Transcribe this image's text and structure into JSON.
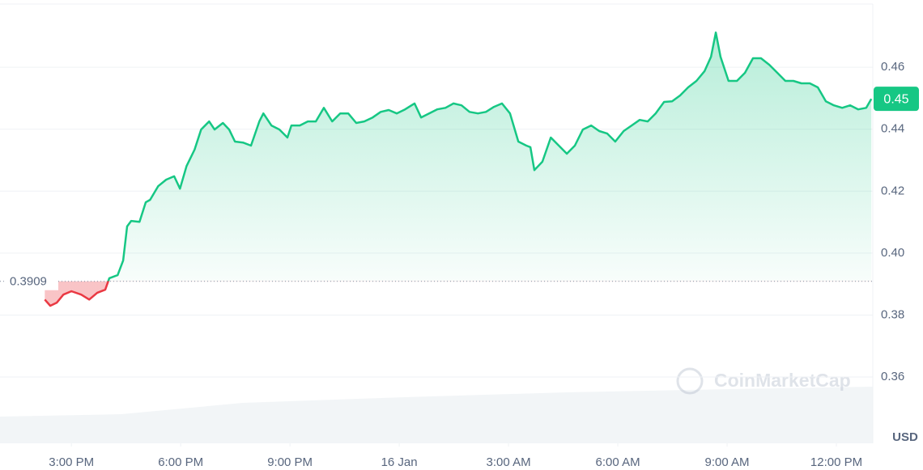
{
  "chart_data": {
    "type": "line",
    "x": [
      14.27,
      14.42,
      14.6,
      14.78,
      15,
      15.27,
      15.49,
      15.71,
      15.93,
      16.04,
      16.27,
      16.42,
      16.53,
      16.64,
      16.87,
      17.04,
      17.16,
      17.38,
      17.6,
      17.82,
      17.98,
      18.16,
      18.38,
      18.56,
      18.78,
      18.93,
      19.16,
      19.33,
      19.49,
      19.71,
      19.93,
      20.16,
      20.27,
      20.49,
      20.71,
      20.93,
      21.04,
      21.27,
      21.49,
      21.71,
      21.93,
      22.16,
      22.38,
      22.6,
      22.82,
      23.04,
      23.27,
      23.49,
      23.71,
      23.93,
      24.16,
      24.42,
      24.6,
      24.82,
      25.04,
      25.27,
      25.49,
      25.71,
      25.93,
      26.16,
      26.38,
      26.6,
      26.82,
      27.04,
      27.27,
      27.49,
      27.6,
      27.71,
      27.93,
      28.16,
      28.38,
      28.6,
      28.82,
      29.04,
      29.27,
      29.49,
      29.71,
      29.93,
      30.16,
      30.38,
      30.6,
      30.82,
      31.04,
      31.27,
      31.49,
      31.71,
      31.93,
      32.16,
      32.38,
      32.56,
      32.69,
      32.82,
      33.04,
      33.27,
      33.49,
      33.71,
      33.93,
      34.16,
      34.38,
      34.6,
      34.82,
      35.04,
      35.27,
      35.49,
      35.71,
      35.93,
      36.16,
      36.38,
      36.6,
      36.82,
      36.96
    ],
    "series": [
      {
        "color": "#16c784",
        "below_color": "#ea3943",
        "values": [
          0.385,
          0.383,
          0.384,
          0.3866,
          0.3877,
          0.3866,
          0.385,
          0.3872,
          0.3882,
          0.3919,
          0.3929,
          0.3976,
          0.4086,
          0.4104,
          0.4101,
          0.4164,
          0.4172,
          0.4216,
          0.4237,
          0.4248,
          0.4208,
          0.4281,
          0.4334,
          0.4399,
          0.4425,
          0.4399,
          0.442,
          0.4399,
          0.436,
          0.4357,
          0.4347,
          0.4425,
          0.4451,
          0.4412,
          0.4399,
          0.4373,
          0.4412,
          0.4412,
          0.4425,
          0.4425,
          0.4469,
          0.4425,
          0.4451,
          0.4451,
          0.442,
          0.4425,
          0.4438,
          0.4456,
          0.4462,
          0.4451,
          0.4464,
          0.4483,
          0.4438,
          0.4451,
          0.4464,
          0.4469,
          0.4483,
          0.4477,
          0.4456,
          0.4451,
          0.4456,
          0.4472,
          0.4483,
          0.4451,
          0.436,
          0.4347,
          0.4342,
          0.4268,
          0.4295,
          0.4373,
          0.4347,
          0.4321,
          0.4347,
          0.4399,
          0.4412,
          0.4394,
          0.4386,
          0.436,
          0.4394,
          0.4412,
          0.443,
          0.4425,
          0.4451,
          0.4488,
          0.449,
          0.4509,
          0.4535,
          0.4556,
          0.4587,
          0.4634,
          0.4712,
          0.4634,
          0.4556,
          0.4556,
          0.4582,
          0.4629,
          0.4629,
          0.4608,
          0.4582,
          0.4556,
          0.4556,
          0.4548,
          0.4548,
          0.4535,
          0.449,
          0.4477,
          0.4469,
          0.4477,
          0.4464,
          0.4469,
          0.4498
        ]
      }
    ],
    "reference_value": 0.3909,
    "current_price_label": "0.45",
    "xlim": [
      13.04,
      37.0
    ],
    "xticks": [
      {
        "value": 15,
        "label": "3:00 PM"
      },
      {
        "value": 18,
        "label": "6:00 PM"
      },
      {
        "value": 21,
        "label": "9:00 PM"
      },
      {
        "value": 24,
        "label": "16 Jan"
      },
      {
        "value": 27,
        "label": "3:00 AM"
      },
      {
        "value": 30,
        "label": "6:00 AM"
      },
      {
        "value": 33,
        "label": "9:00 AM"
      },
      {
        "value": 36,
        "label": "12:00 PM"
      }
    ],
    "ylim": [
      0.3386,
      0.4804
    ],
    "yticks": [
      0.36,
      0.38,
      {
        "value": 0.4,
        "label": "0.40"
      },
      0.42,
      0.44,
      0.46
    ],
    "y_unit": "USD",
    "watermark": "CoinMarketCap",
    "grid": true
  }
}
